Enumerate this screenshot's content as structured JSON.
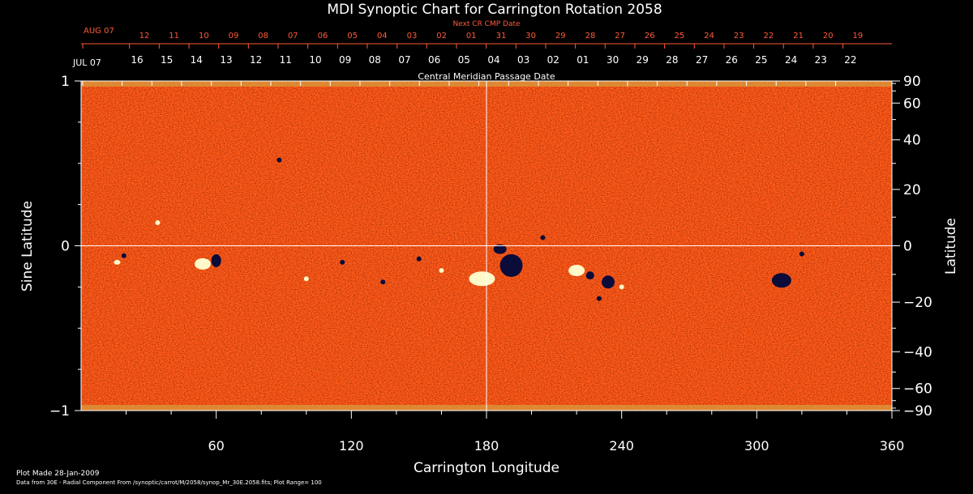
{
  "chart_data": {
    "type": "heatmap",
    "title": "MDI Synoptic Chart for Carrington Rotation 2058",
    "xlabel": "Carrington Longitude",
    "ylabel_left": "Sine Latitude",
    "ylabel_right": "Latitude",
    "xlim": [
      0,
      360
    ],
    "ylim": [
      -1,
      1
    ],
    "x_ticks": [
      60,
      120,
      180,
      240,
      300,
      360
    ],
    "y_ticks_left": [
      1,
      0,
      -1
    ],
    "y_ticks_right": [
      90,
      60,
      40,
      20,
      0,
      -20,
      -40,
      -60,
      -90
    ],
    "top_axis_outer": {
      "label": "Next CR CMP Date",
      "start_label": "AUG 07",
      "day_labels": [
        "12",
        "11",
        "10",
        "09",
        "08",
        "07",
        "06",
        "05",
        "04",
        "03",
        "02",
        "01",
        "31",
        "30",
        "29",
        "28",
        "27",
        "26",
        "25",
        "24",
        "23",
        "22",
        "21",
        "20",
        "19"
      ]
    },
    "top_axis_inner": {
      "label": "Central Meridian Passage Date",
      "start_label": "JUL 07",
      "day_labels": [
        "16",
        "15",
        "14",
        "13",
        "12",
        "11",
        "10",
        "09",
        "08",
        "07",
        "06",
        "05",
        "04",
        "03",
        "02",
        "01",
        "30",
        "29",
        "28",
        "27",
        "26",
        "25",
        "24",
        "23",
        "22"
      ]
    },
    "colors": {
      "background_field": "#ff5a1e",
      "positive_polarity": "#fff8c8",
      "negative_polarity": "#0b0c3a",
      "outer_date_axis": "#ff5a3a",
      "axis": "#ffffff"
    }
  },
  "footer": {
    "plot_made": "Plot Made 28-Jan-2009",
    "data_note": "Data from 30E - Radial Component From /synoptic/carrot/M/2058/synop_Mr_30E.2058.fits; Plot Range= 100"
  }
}
